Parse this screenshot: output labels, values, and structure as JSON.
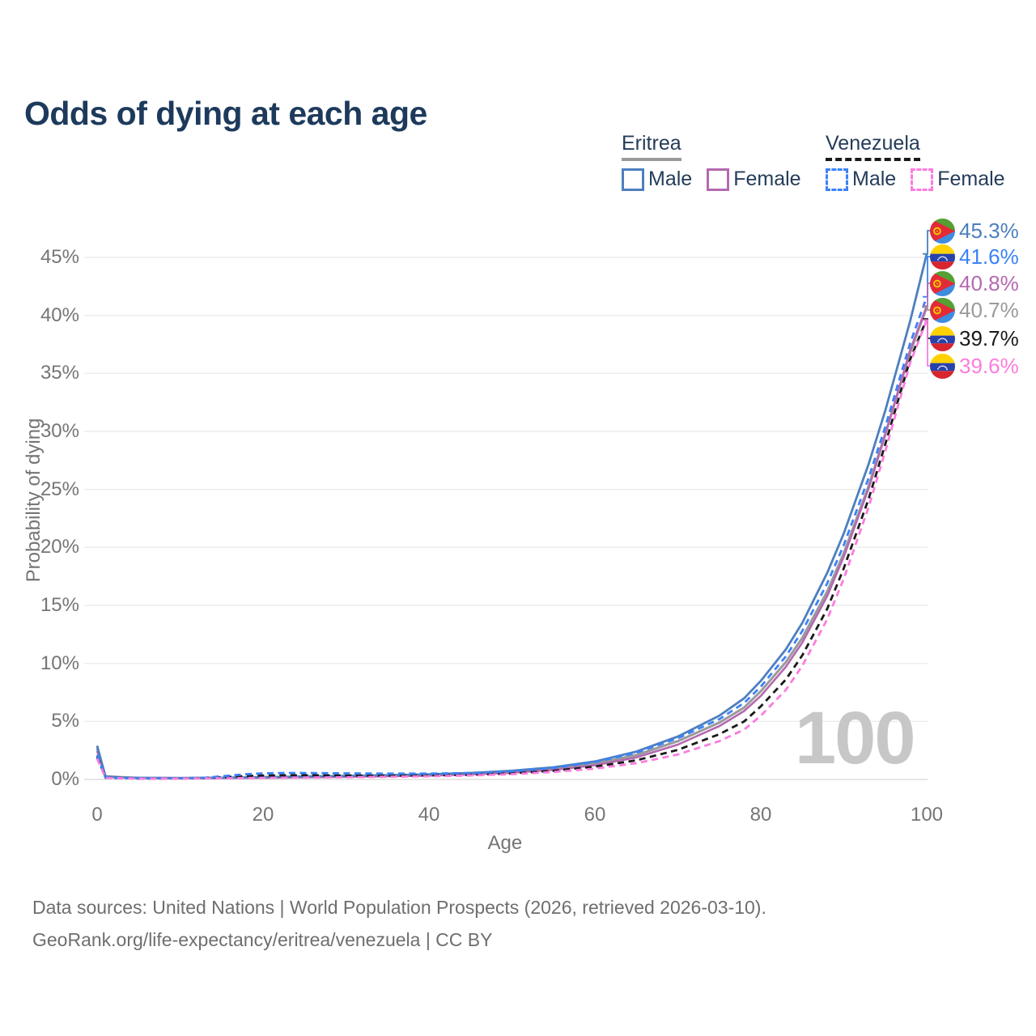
{
  "title": "Odds of dying at each age",
  "watermark": "100",
  "legend": {
    "groups": [
      {
        "country": "Eritrea",
        "underline_style": "solid",
        "underline_color": "#9a9a9a",
        "items": [
          {
            "label": "Male",
            "color": "#4d7fbe",
            "dashed": false
          },
          {
            "label": "Female",
            "color": "#b469b0",
            "dashed": false
          }
        ]
      },
      {
        "country": "Venezuela",
        "underline_style": "dashed",
        "underline_color": "#1a1a1a",
        "items": [
          {
            "label": "Male",
            "color": "#3b82f7",
            "dashed": true
          },
          {
            "label": "Female",
            "color": "#fb7cde",
            "dashed": true
          }
        ]
      }
    ]
  },
  "axes": {
    "x_title": "Age",
    "y_title": "Probability of dying",
    "x_ticks": [
      {
        "v": 0,
        "label": "0"
      },
      {
        "v": 20,
        "label": "20"
      },
      {
        "v": 40,
        "label": "40"
      },
      {
        "v": 60,
        "label": "60"
      },
      {
        "v": 80,
        "label": "80"
      },
      {
        "v": 100,
        "label": "100"
      }
    ],
    "y_ticks": [
      {
        "v": 0,
        "label": "0%"
      },
      {
        "v": 5,
        "label": "5%"
      },
      {
        "v": 10,
        "label": "10%"
      },
      {
        "v": 15,
        "label": "15%"
      },
      {
        "v": 20,
        "label": "20%"
      },
      {
        "v": 25,
        "label": "25%"
      },
      {
        "v": 30,
        "label": "30%"
      },
      {
        "v": 35,
        "label": "35%"
      },
      {
        "v": 40,
        "label": "40%"
      },
      {
        "v": 45,
        "label": "45%"
      }
    ]
  },
  "end_labels": [
    {
      "value": 45.3,
      "display": "45.3%",
      "color": "#4d7fbe",
      "flag": "eritrea",
      "series": "Eritrea Male"
    },
    {
      "value": 41.6,
      "display": "41.6%",
      "color": "#3b82f7",
      "flag": "venezuela",
      "series": "Venezuela Male"
    },
    {
      "value": 40.8,
      "display": "40.8%",
      "color": "#b469b0",
      "flag": "eritrea",
      "series": "Eritrea Female"
    },
    {
      "value": 40.7,
      "display": "40.7%",
      "color": "#9a9a9a",
      "flag": "eritrea",
      "series": "Eritrea Both"
    },
    {
      "value": 39.7,
      "display": "39.7%",
      "color": "#1a1a1a",
      "flag": "venezuela",
      "series": "Venezuela Both"
    },
    {
      "value": 39.6,
      "display": "39.6%",
      "color": "#fb7cde",
      "flag": "venezuela",
      "series": "Venezuela Female"
    }
  ],
  "chart_data": {
    "type": "line",
    "title": "Odds of dying at each age",
    "xlabel": "Age",
    "ylabel": "Probability of dying",
    "xlim": [
      0,
      100
    ],
    "ylim": [
      0,
      47
    ],
    "grid": "horizontal",
    "series": [
      {
        "name": "Eritrea Both",
        "key": "eritrea-both",
        "color": "#9a9a9a",
        "dashed": false,
        "width": 3,
        "points": [
          [
            0,
            2.7
          ],
          [
            1,
            0.25
          ],
          [
            5,
            0.13
          ],
          [
            10,
            0.11
          ],
          [
            15,
            0.14
          ],
          [
            20,
            0.18
          ],
          [
            25,
            0.22
          ],
          [
            30,
            0.26
          ],
          [
            35,
            0.31
          ],
          [
            40,
            0.38
          ],
          [
            45,
            0.49
          ],
          [
            50,
            0.65
          ],
          [
            55,
            0.92
          ],
          [
            60,
            1.37
          ],
          [
            65,
            2.1
          ],
          [
            70,
            3.3
          ],
          [
            75,
            4.9
          ],
          [
            78,
            6.2
          ],
          [
            80,
            7.6
          ],
          [
            83,
            10.1
          ],
          [
            85,
            12.2
          ],
          [
            88,
            16.2
          ],
          [
            90,
            19.5
          ],
          [
            93,
            25.3
          ],
          [
            95,
            29.8
          ],
          [
            98,
            36.8
          ],
          [
            100,
            40.7
          ]
        ]
      },
      {
        "name": "Eritrea Female",
        "key": "eritrea-female",
        "color": "#b469b0",
        "dashed": false,
        "width": 2.6,
        "points": [
          [
            0,
            2.45
          ],
          [
            1,
            0.22
          ],
          [
            5,
            0.12
          ],
          [
            10,
            0.1
          ],
          [
            15,
            0.12
          ],
          [
            20,
            0.15
          ],
          [
            25,
            0.18
          ],
          [
            30,
            0.22
          ],
          [
            35,
            0.27
          ],
          [
            40,
            0.33
          ],
          [
            45,
            0.43
          ],
          [
            50,
            0.57
          ],
          [
            55,
            0.82
          ],
          [
            60,
            1.22
          ],
          [
            65,
            1.9
          ],
          [
            70,
            3.0
          ],
          [
            75,
            4.6
          ],
          [
            78,
            5.9
          ],
          [
            80,
            7.2
          ],
          [
            83,
            9.7
          ],
          [
            85,
            11.8
          ],
          [
            88,
            15.8
          ],
          [
            90,
            19.2
          ],
          [
            93,
            25.1
          ],
          [
            95,
            29.7
          ],
          [
            98,
            37.0
          ],
          [
            100,
            40.8
          ]
        ]
      },
      {
        "name": "Eritrea Male",
        "key": "eritrea-male",
        "color": "#4d7fbe",
        "dashed": false,
        "width": 2.8,
        "points": [
          [
            0,
            2.9
          ],
          [
            1,
            0.27
          ],
          [
            3,
            0.17
          ],
          [
            5,
            0.14
          ],
          [
            10,
            0.12
          ],
          [
            15,
            0.15
          ],
          [
            20,
            0.2
          ],
          [
            25,
            0.25
          ],
          [
            30,
            0.3
          ],
          [
            35,
            0.36
          ],
          [
            40,
            0.44
          ],
          [
            45,
            0.56
          ],
          [
            50,
            0.75
          ],
          [
            55,
            1.05
          ],
          [
            60,
            1.55
          ],
          [
            65,
            2.4
          ],
          [
            70,
            3.7
          ],
          [
            75,
            5.5
          ],
          [
            78,
            7.0
          ],
          [
            80,
            8.5
          ],
          [
            83,
            11.2
          ],
          [
            85,
            13.5
          ],
          [
            88,
            17.8
          ],
          [
            90,
            21.2
          ],
          [
            93,
            27.2
          ],
          [
            95,
            31.8
          ],
          [
            98,
            39.5
          ],
          [
            100,
            45.3
          ]
        ]
      },
      {
        "name": "Venezuela Both",
        "key": "venezuela-both",
        "color": "#1a1a1a",
        "dashed": true,
        "width": 2.8,
        "points": [
          [
            0,
            1.95
          ],
          [
            1,
            0.15
          ],
          [
            5,
            0.08
          ],
          [
            10,
            0.09
          ],
          [
            13,
            0.12
          ],
          [
            15,
            0.19
          ],
          [
            18,
            0.3
          ],
          [
            20,
            0.34
          ],
          [
            25,
            0.36
          ],
          [
            30,
            0.34
          ],
          [
            35,
            0.33
          ],
          [
            40,
            0.34
          ],
          [
            45,
            0.4
          ],
          [
            50,
            0.52
          ],
          [
            55,
            0.75
          ],
          [
            60,
            1.1
          ],
          [
            65,
            1.65
          ],
          [
            70,
            2.55
          ],
          [
            75,
            3.9
          ],
          [
            78,
            5.0
          ],
          [
            80,
            6.3
          ],
          [
            83,
            8.6
          ],
          [
            85,
            10.7
          ],
          [
            88,
            14.7
          ],
          [
            90,
            18.2
          ],
          [
            93,
            24.2
          ],
          [
            95,
            28.9
          ],
          [
            98,
            36.2
          ],
          [
            100,
            39.7
          ]
        ]
      },
      {
        "name": "Venezuela Male",
        "key": "venezuela-male",
        "color": "#3b82f7",
        "dashed": true,
        "width": 2.8,
        "points": [
          [
            0,
            2.1
          ],
          [
            1,
            0.16
          ],
          [
            3,
            0.1
          ],
          [
            5,
            0.09
          ],
          [
            10,
            0.1
          ],
          [
            13,
            0.15
          ],
          [
            15,
            0.27
          ],
          [
            18,
            0.45
          ],
          [
            20,
            0.52
          ],
          [
            23,
            0.56
          ],
          [
            25,
            0.55
          ],
          [
            30,
            0.52
          ],
          [
            35,
            0.5
          ],
          [
            40,
            0.5
          ],
          [
            45,
            0.55
          ],
          [
            50,
            0.7
          ],
          [
            55,
            1.0
          ],
          [
            60,
            1.5
          ],
          [
            65,
            2.3
          ],
          [
            70,
            3.55
          ],
          [
            75,
            5.2
          ],
          [
            78,
            6.6
          ],
          [
            80,
            8.0
          ],
          [
            83,
            10.6
          ],
          [
            85,
            12.8
          ],
          [
            88,
            16.9
          ],
          [
            90,
            20.2
          ],
          [
            93,
            26.0
          ],
          [
            95,
            30.4
          ],
          [
            98,
            37.6
          ],
          [
            100,
            41.6
          ]
        ]
      },
      {
        "name": "Venezuela Female",
        "key": "venezuela-female",
        "color": "#fb7cde",
        "dashed": true,
        "width": 2.8,
        "points": [
          [
            0,
            1.8
          ],
          [
            1,
            0.13
          ],
          [
            5,
            0.07
          ],
          [
            10,
            0.08
          ],
          [
            15,
            0.1
          ],
          [
            20,
            0.13
          ],
          [
            25,
            0.16
          ],
          [
            30,
            0.19
          ],
          [
            35,
            0.22
          ],
          [
            40,
            0.27
          ],
          [
            45,
            0.34
          ],
          [
            50,
            0.45
          ],
          [
            55,
            0.64
          ],
          [
            60,
            0.93
          ],
          [
            65,
            1.4
          ],
          [
            70,
            2.15
          ],
          [
            75,
            3.3
          ],
          [
            78,
            4.3
          ],
          [
            80,
            5.5
          ],
          [
            83,
            7.7
          ],
          [
            85,
            9.8
          ],
          [
            88,
            13.8
          ],
          [
            90,
            17.3
          ],
          [
            93,
            23.5
          ],
          [
            95,
            28.3
          ],
          [
            98,
            35.9
          ],
          [
            100,
            39.6
          ]
        ]
      }
    ]
  },
  "source": {
    "line1": "Data sources: United Nations | World Population Prospects (2026, retrieved 2026-03-10).",
    "line2": "GeoRank.org/life-expectancy/eritrea/venezuela | CC BY"
  }
}
